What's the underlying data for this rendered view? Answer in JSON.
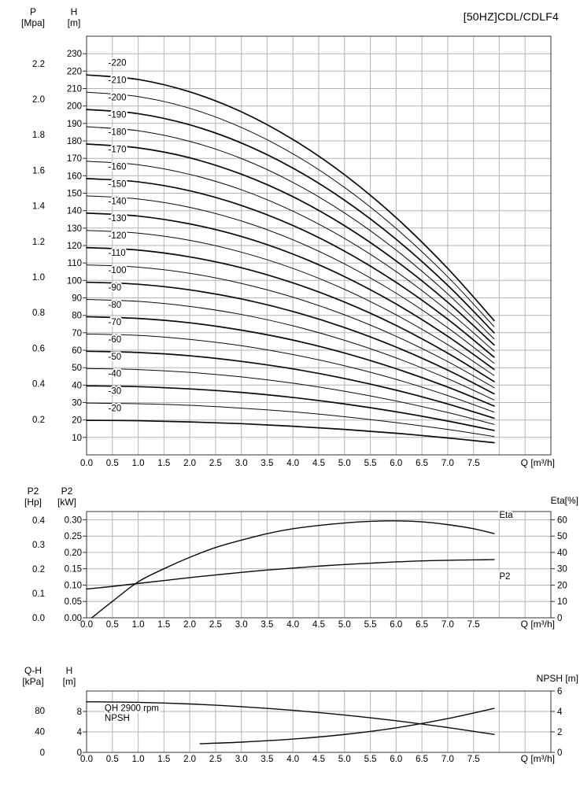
{
  "title": "[50HZ]CDL/CDLF4",
  "x_axis": {
    "label": "Q [m³/h]",
    "max": 9,
    "grid_step": 0.5,
    "decimals": 1,
    "ticks": [
      0,
      0.5,
      1,
      1.5,
      2,
      2.5,
      3,
      3.5,
      4,
      4.5,
      5,
      5.5,
      6,
      6.5,
      7,
      7.5
    ]
  },
  "chart_data": [
    {
      "id": "qh",
      "type": "line",
      "description": "Head curves per number of stages",
      "axes": {
        "outer_left": {
          "name": "P",
          "unit": "[Mpa]",
          "max": 2.354,
          "decimals": 1,
          "ticks": [
            0.2,
            0.4,
            0.6,
            0.8,
            1.0,
            1.2,
            1.4,
            1.6,
            1.8,
            2.0,
            2.2
          ]
        },
        "inner_left": {
          "name": "H",
          "unit": "[m]",
          "max": 240,
          "decimals": 0,
          "ticks": [
            10,
            20,
            30,
            40,
            50,
            60,
            70,
            80,
            90,
            100,
            110,
            120,
            130,
            140,
            150,
            160,
            170,
            180,
            190,
            200,
            210,
            220,
            230
          ]
        }
      },
      "grid_values": [
        10,
        20,
        30,
        40,
        50,
        60,
        70,
        80,
        90,
        100,
        110,
        120,
        130,
        140,
        150,
        160,
        170,
        180,
        190,
        200,
        210,
        220,
        230
      ],
      "q": [
        0,
        1,
        2,
        3,
        4,
        5,
        6,
        7,
        7.9
      ],
      "series": [
        {
          "label": "-20",
          "values": [
            19.8,
            19.6,
            18.9,
            17.9,
            16.4,
            14.6,
            12.4,
            9.7,
            7.0
          ]
        },
        {
          "label": "-30",
          "values": [
            29.7,
            29.3,
            28.4,
            26.8,
            24.7,
            21.9,
            18.5,
            14.6,
            10.5
          ]
        },
        {
          "label": "-40",
          "values": [
            39.6,
            39.1,
            37.8,
            35.8,
            32.9,
            29.2,
            24.7,
            19.4,
            14.0
          ]
        },
        {
          "label": "-50",
          "values": [
            49.5,
            48.9,
            47.3,
            44.7,
            41.1,
            36.5,
            30.9,
            24.3,
            17.5
          ]
        },
        {
          "label": "-60",
          "values": [
            59.4,
            58.7,
            56.8,
            53.6,
            49.3,
            43.8,
            37.1,
            29.2,
            21.0
          ]
        },
        {
          "label": "-70",
          "values": [
            69.3,
            68.5,
            66.2,
            62.6,
            57.5,
            51.1,
            43.3,
            34.0,
            24.5
          ]
        },
        {
          "label": "-80",
          "values": [
            79.2,
            78.2,
            75.7,
            71.5,
            65.8,
            58.4,
            49.4,
            38.9,
            28.0
          ]
        },
        {
          "label": "-90",
          "values": [
            89.1,
            88.0,
            85.1,
            80.5,
            74.0,
            65.7,
            55.6,
            43.7,
            31.5
          ]
        },
        {
          "label": "-100",
          "values": [
            99.0,
            97.8,
            94.6,
            89.4,
            82.2,
            73.0,
            61.8,
            48.6,
            35.0
          ]
        },
        {
          "label": "-110",
          "values": [
            108.9,
            107.6,
            104.1,
            98.3,
            90.4,
            80.3,
            68.0,
            53.5,
            38.5
          ]
        },
        {
          "label": "-120",
          "values": [
            118.8,
            117.4,
            113.5,
            107.3,
            98.6,
            87.6,
            74.2,
            58.3,
            42.0
          ]
        },
        {
          "label": "-130",
          "values": [
            128.7,
            127.1,
            123.0,
            116.2,
            106.9,
            94.9,
            80.3,
            63.2,
            45.5
          ]
        },
        {
          "label": "-140",
          "values": [
            138.6,
            136.9,
            132.4,
            125.2,
            115.1,
            102.2,
            86.5,
            68.0,
            49.0
          ]
        },
        {
          "label": "-150",
          "values": [
            148.5,
            146.7,
            141.9,
            134.1,
            123.3,
            109.5,
            92.7,
            72.9,
            52.5
          ]
        },
        {
          "label": "-160",
          "values": [
            158.4,
            156.5,
            151.4,
            143.0,
            131.5,
            116.8,
            98.9,
            77.8,
            56.0
          ]
        },
        {
          "label": "-170",
          "values": [
            168.3,
            166.3,
            160.8,
            152.0,
            139.7,
            124.1,
            105.1,
            82.6,
            59.5
          ]
        },
        {
          "label": "-180",
          "values": [
            178.2,
            176.0,
            170.3,
            160.9,
            148.0,
            131.4,
            111.2,
            87.5,
            63.0
          ]
        },
        {
          "label": "-190",
          "values": [
            188.1,
            185.8,
            179.7,
            169.9,
            156.2,
            138.7,
            117.4,
            92.3,
            66.5
          ]
        },
        {
          "label": "-200",
          "values": [
            198.0,
            195.6,
            189.2,
            178.8,
            164.4,
            146.0,
            123.6,
            97.2,
            70.0
          ]
        },
        {
          "label": "-210",
          "values": [
            207.9,
            205.4,
            198.7,
            187.7,
            172.6,
            153.3,
            129.8,
            102.1,
            73.5
          ]
        },
        {
          "label": "-220",
          "values": [
            217.8,
            215.2,
            208.1,
            196.7,
            180.8,
            160.6,
            136.0,
            106.9,
            77.0
          ]
        }
      ]
    },
    {
      "id": "power",
      "type": "line",
      "description": "Shaft power and efficiency",
      "axes": {
        "outer_left": {
          "name": "P2",
          "unit": "[Hp]",
          "max": 0.4359,
          "decimals": 1,
          "ticks": [
            0,
            0.1,
            0.2,
            0.3,
            0.4
          ]
        },
        "inner_left": {
          "name": "P2",
          "unit": "[kW]",
          "max": 0.325,
          "decimals": 2,
          "ticks": [
            0,
            0.05,
            0.1,
            0.15,
            0.2,
            0.25,
            0.3
          ]
        },
        "right": {
          "header": "Eta[%]",
          "name": "Eta",
          "unit": "[%]",
          "max": 65,
          "decimals": 0,
          "ticks": [
            0,
            10,
            20,
            30,
            40,
            50,
            60
          ]
        }
      },
      "grid_values": [
        0.05,
        0.1,
        0.15,
        0.2,
        0.25,
        0.3
      ],
      "series": [
        {
          "name": "Eta",
          "axis": "right",
          "q": [
            0.1,
            0.5,
            1,
            1.5,
            2,
            2.5,
            3,
            3.5,
            4,
            4.5,
            5,
            5.5,
            6,
            6.5,
            7,
            7.5,
            7.9
          ],
          "values": [
            0,
            10,
            22,
            30,
            37,
            43,
            47.5,
            51.5,
            54.5,
            56.5,
            58,
            59,
            59.3,
            58.7,
            57,
            54.5,
            51.5
          ],
          "label_at": {
            "q": 8.0,
            "v": 63,
            "anchor": "start"
          }
        },
        {
          "name": "P2",
          "axis": "inner_left",
          "q": [
            0,
            0.5,
            1,
            1.5,
            2,
            2.5,
            3,
            3.5,
            4,
            4.5,
            5,
            5.5,
            6,
            6.5,
            7,
            7.5,
            7.9
          ],
          "values": [
            0.088,
            0.096,
            0.105,
            0.114,
            0.123,
            0.131,
            0.139,
            0.146,
            0.152,
            0.158,
            0.163,
            0.167,
            0.171,
            0.174,
            0.176,
            0.177,
            0.178
          ],
          "label_at": {
            "q": 8.0,
            "v": 0.128,
            "anchor": "start"
          }
        }
      ]
    },
    {
      "id": "qh-npsh",
      "type": "line",
      "description": "Single-stage head and NPSH",
      "axes": {
        "outer_left": {
          "name": "Q-H",
          "unit": "[kPa]",
          "max": 117.7,
          "decimals": 0,
          "ticks": [
            0,
            40,
            80
          ]
        },
        "inner_left": {
          "name": "H",
          "unit": "[m]",
          "max": 12,
          "decimals": 0,
          "ticks": [
            0,
            4,
            8
          ]
        },
        "right": {
          "header": "NPSH [m]",
          "name": "NPSH",
          "unit": "[m]",
          "max": 6,
          "decimals": 0,
          "ticks": [
            0,
            2,
            4,
            6
          ]
        }
      },
      "grid_values": [
        4,
        8
      ],
      "series": [
        {
          "name": "QH 2900 rpm",
          "axis": "inner_left",
          "q": [
            0,
            1,
            2,
            3,
            4,
            5,
            6,
            7,
            7.9
          ],
          "values": [
            9.9,
            9.78,
            9.46,
            8.94,
            8.22,
            7.3,
            6.18,
            4.86,
            3.5
          ],
          "label_at": {
            "q": 0.35,
            "v": 8.7,
            "anchor": "start"
          }
        },
        {
          "name": "NPSH",
          "axis": "right",
          "q": [
            2.2,
            3,
            4,
            5,
            6,
            7,
            7.9
          ],
          "values": [
            0.85,
            1.0,
            1.3,
            1.75,
            2.4,
            3.3,
            4.3
          ],
          "label_at": {
            "q": 0.35,
            "v": 3.4,
            "anchor": "start"
          }
        }
      ]
    }
  ]
}
